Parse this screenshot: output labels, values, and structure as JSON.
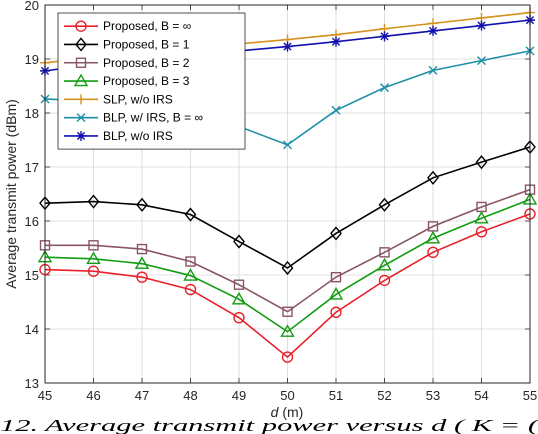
{
  "chart_data": {
    "type": "line",
    "xlabel_symbol": "d",
    "xlabel_unit": " (m)",
    "ylabel": "Average transmit power (dBm)",
    "xlim": [
      45,
      55
    ],
    "ylim": [
      13,
      20
    ],
    "x": [
      45,
      46,
      47,
      48,
      49,
      50,
      51,
      52,
      53,
      54,
      55
    ],
    "x_ticks": [
      "45",
      "46",
      "47",
      "48",
      "49",
      "50",
      "51",
      "52",
      "53",
      "54",
      "55"
    ],
    "y_ticks": [
      "13",
      "14",
      "15",
      "16",
      "17",
      "18",
      "19",
      "20"
    ],
    "grid": true,
    "legend_position": "top-left",
    "series": [
      {
        "name": "Proposed, B = ∞",
        "color": "#e8202a",
        "marker": "circle",
        "values": [
          15.1,
          15.07,
          14.96,
          14.73,
          14.21,
          13.48,
          14.31,
          14.9,
          15.42,
          15.8,
          16.13
        ]
      },
      {
        "name": "Proposed, B = 1",
        "color": "#000000",
        "marker": "diamond",
        "values": [
          16.33,
          16.36,
          16.3,
          16.12,
          15.62,
          15.13,
          15.77,
          16.3,
          16.8,
          17.09,
          17.37
        ]
      },
      {
        "name": "Proposed, B = 2",
        "color": "#8a5563",
        "marker": "square",
        "values": [
          15.55,
          15.55,
          15.48,
          15.25,
          14.82,
          14.32,
          14.96,
          15.42,
          15.9,
          16.26,
          16.58
        ]
      },
      {
        "name": "Proposed, B = 3",
        "color": "#119c11",
        "marker": "triangle",
        "values": [
          15.33,
          15.3,
          15.21,
          14.99,
          14.55,
          13.95,
          14.64,
          15.18,
          15.68,
          16.05,
          16.4
        ]
      },
      {
        "name": "SLP, w/o IRS",
        "color": "#d4911c",
        "marker": "plus",
        "values": [
          18.93,
          19.03,
          19.1,
          19.18,
          19.28,
          19.36,
          19.45,
          19.56,
          19.66,
          19.76,
          19.86
        ]
      },
      {
        "name": "BLP, w/ IRS, B = ∞",
        "color": "#1f8fa6",
        "marker": "x",
        "values": [
          18.26,
          18.22,
          18.13,
          17.97,
          17.75,
          17.41,
          18.05,
          18.47,
          18.79,
          18.97,
          19.15
        ]
      },
      {
        "name": "BLP, w/o IRS",
        "color": "#1010b0",
        "marker": "asterisk",
        "values": [
          18.78,
          18.9,
          18.98,
          19.06,
          19.15,
          19.23,
          19.32,
          19.42,
          19.52,
          19.62,
          19.72
        ]
      }
    ]
  },
  "caption_fragment": "12.  Average transmit power versus  d  ( K = ("
}
